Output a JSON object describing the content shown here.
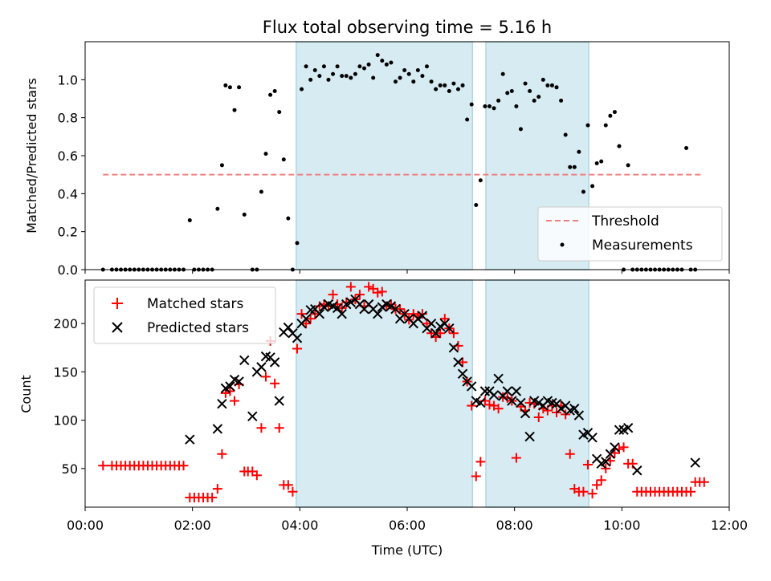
{
  "figure": {
    "title": "Flux total observing time = 5.16 h",
    "xlabel": "Time (UTC)"
  },
  "chart_data": [
    {
      "type": "scatter",
      "ylabel": "Matched/Predicted stars",
      "xlim": [
        "00:00",
        "12:00"
      ],
      "ylim": [
        0,
        1.2
      ],
      "xticks": [
        "00:00",
        "02:00",
        "04:00",
        "06:00",
        "08:00",
        "10:00",
        "12:00"
      ],
      "yticks": [
        "0.0",
        "0.2",
        "0.4",
        "0.6",
        "0.8",
        "1.0"
      ],
      "shaded_intervals": [
        [
          "03:56",
          "07:13"
        ],
        [
          "07:28",
          "09:23"
        ]
      ],
      "threshold": {
        "name": "Threshold",
        "value": 0.5,
        "x_range": [
          "00:20",
          "11:30"
        ],
        "color": "#f08080"
      },
      "legend": {
        "position": "lower-right",
        "entries": [
          "Threshold",
          "Measurements"
        ]
      },
      "series": [
        {
          "name": "Measurements",
          "marker": "dot",
          "color": "#000000",
          "x": [
            "00:20",
            "00:30",
            "00:35",
            "00:40",
            "00:45",
            "00:50",
            "00:55",
            "01:00",
            "01:05",
            "01:10",
            "01:15",
            "01:20",
            "01:25",
            "01:30",
            "01:35",
            "01:40",
            "01:45",
            "01:50",
            "01:57",
            "02:02",
            "02:07",
            "02:12",
            "02:17",
            "02:22",
            "02:28",
            "02:33",
            "02:37",
            "02:42",
            "02:47",
            "02:52",
            "02:58",
            "03:07",
            "03:12",
            "03:17",
            "03:22",
            "03:27",
            "03:32",
            "03:37",
            "03:42",
            "03:47",
            "03:52",
            "03:57",
            "04:02",
            "04:07",
            "04:12",
            "04:17",
            "04:22",
            "04:27",
            "04:32",
            "04:37",
            "04:42",
            "04:47",
            "04:52",
            "04:57",
            "05:02",
            "05:07",
            "05:12",
            "05:17",
            "05:22",
            "05:27",
            "05:32",
            "05:37",
            "05:42",
            "05:47",
            "05:52",
            "05:57",
            "06:02",
            "06:07",
            "06:12",
            "06:17",
            "06:22",
            "06:27",
            "06:32",
            "06:37",
            "06:42",
            "06:47",
            "06:52",
            "06:57",
            "07:02",
            "07:07",
            "07:12",
            "07:17",
            "07:22",
            "07:27",
            "07:32",
            "07:37",
            "07:42",
            "07:47",
            "07:52",
            "07:57",
            "08:02",
            "08:07",
            "08:12",
            "08:17",
            "08:22",
            "08:27",
            "08:32",
            "08:37",
            "08:42",
            "08:47",
            "08:52",
            "08:57",
            "09:02",
            "09:07",
            "09:12",
            "09:17",
            "09:22",
            "09:27",
            "09:32",
            "09:37",
            "09:42",
            "09:47",
            "09:52",
            "09:57",
            "10:02",
            "10:07",
            "10:12",
            "10:17",
            "10:22",
            "10:27",
            "10:32",
            "10:37",
            "10:42",
            "10:47",
            "10:52",
            "10:57",
            "11:02",
            "11:07",
            "11:12",
            "11:17",
            "11:22"
          ],
          "values": [
            0.0,
            0.0,
            0.0,
            0.0,
            0.0,
            0.0,
            0.0,
            0.0,
            0.0,
            0.0,
            0.0,
            0.0,
            0.0,
            0.0,
            0.0,
            0.0,
            0.0,
            0.0,
            0.26,
            0.0,
            0.0,
            0.0,
            0.0,
            0.0,
            0.32,
            0.55,
            0.97,
            0.96,
            0.84,
            0.96,
            0.29,
            0.0,
            0.0,
            0.41,
            0.61,
            0.92,
            0.94,
            0.83,
            0.58,
            0.27,
            0.0,
            0.14,
            0.95,
            1.07,
            1.0,
            1.05,
            1.02,
            1.07,
            1.0,
            1.03,
            1.07,
            1.02,
            1.02,
            1.01,
            1.03,
            1.07,
            1.06,
            1.08,
            1.01,
            1.13,
            1.1,
            1.08,
            1.09,
            0.99,
            1.01,
            1.05,
            1.03,
            0.99,
            1.05,
            1.02,
            1.07,
            0.99,
            0.95,
            0.97,
            0.97,
            0.94,
            0.98,
            0.95,
            0.97,
            0.79,
            0.87,
            0.34,
            0.47,
            0.86,
            0.86,
            0.85,
            0.89,
            1.03,
            0.93,
            0.94,
            0.86,
            0.74,
            0.98,
            0.94,
            0.89,
            0.91,
            1.0,
            0.97,
            0.97,
            0.96,
            0.89,
            0.71,
            0.54,
            0.54,
            0.62,
            0.41,
            0.76,
            0.44,
            0.56,
            0.57,
            0.76,
            0.81,
            0.83,
            0.65,
            0.0,
            0.55,
            0.0,
            0.0,
            0.0,
            0.0,
            0.0,
            0.0,
            0.0,
            0.0,
            0.0,
            0.0,
            0.0,
            0.0,
            0.64,
            0.0,
            0.0
          ]
        }
      ]
    },
    {
      "type": "scatter",
      "ylabel": "Count",
      "xlabel": "Time (UTC)",
      "xlim": [
        "00:00",
        "12:00"
      ],
      "ylim": [
        10,
        245
      ],
      "xticks": [
        "00:00",
        "02:00",
        "04:00",
        "06:00",
        "08:00",
        "10:00",
        "12:00"
      ],
      "yticks": [
        "50",
        "100",
        "150",
        "200"
      ],
      "shaded_intervals": [
        [
          "03:56",
          "07:13"
        ],
        [
          "07:28",
          "09:23"
        ]
      ],
      "legend": {
        "position": "top-left",
        "entries": [
          "Matched stars",
          "Predicted stars"
        ]
      },
      "series": [
        {
          "name": "Matched stars",
          "marker": "plus",
          "color": "#ff0000",
          "x": [
            "00:20",
            "00:30",
            "00:35",
            "00:40",
            "00:45",
            "00:50",
            "00:55",
            "01:00",
            "01:05",
            "01:10",
            "01:15",
            "01:20",
            "01:25",
            "01:30",
            "01:35",
            "01:40",
            "01:45",
            "01:50",
            "01:57",
            "02:02",
            "02:07",
            "02:12",
            "02:17",
            "02:22",
            "02:28",
            "02:33",
            "02:37",
            "02:42",
            "02:47",
            "02:52",
            "02:58",
            "03:02",
            "03:07",
            "03:12",
            "03:17",
            "03:22",
            "03:27",
            "03:32",
            "03:37",
            "03:42",
            "03:47",
            "03:52",
            "03:57",
            "04:02",
            "04:07",
            "04:12",
            "04:17",
            "04:22",
            "04:27",
            "04:32",
            "04:37",
            "04:42",
            "04:47",
            "04:52",
            "04:57",
            "05:02",
            "05:07",
            "05:12",
            "05:17",
            "05:22",
            "05:27",
            "05:32",
            "05:37",
            "05:42",
            "05:47",
            "05:52",
            "05:57",
            "06:02",
            "06:07",
            "06:12",
            "06:17",
            "06:22",
            "06:27",
            "06:32",
            "06:37",
            "06:42",
            "06:47",
            "06:52",
            "06:57",
            "07:02",
            "07:07",
            "07:12",
            "07:17",
            "07:22",
            "07:27",
            "07:32",
            "07:37",
            "07:42",
            "07:47",
            "07:52",
            "07:57",
            "08:02",
            "08:07",
            "08:12",
            "08:17",
            "08:22",
            "08:27",
            "08:32",
            "08:37",
            "08:42",
            "08:47",
            "08:52",
            "08:57",
            "09:02",
            "09:07",
            "09:12",
            "09:17",
            "09:22",
            "09:27",
            "09:32",
            "09:37",
            "09:42",
            "09:47",
            "09:52",
            "09:57",
            "10:02",
            "10:07",
            "10:12",
            "10:17",
            "10:22",
            "10:27",
            "10:32",
            "10:37",
            "10:42",
            "10:47",
            "10:52",
            "10:57",
            "11:02",
            "11:07",
            "11:12",
            "11:17",
            "11:22",
            "11:27",
            "11:32"
          ],
          "values": [
            53,
            53,
            53,
            53,
            53,
            53,
            53,
            53,
            53,
            53,
            53,
            53,
            53,
            53,
            53,
            53,
            53,
            53,
            20,
            20,
            20,
            20,
            20,
            20,
            29,
            65,
            128,
            130,
            120,
            137,
            47,
            47,
            47,
            43,
            92,
            145,
            182,
            138,
            92,
            33,
            33,
            26,
            174,
            210,
            200,
            205,
            210,
            218,
            220,
            218,
            230,
            220,
            216,
            222,
            238,
            225,
            230,
            218,
            238,
            236,
            232,
            233,
            218,
            220,
            215,
            215,
            210,
            204,
            210,
            208,
            210,
            200,
            190,
            186,
            190,
            205,
            195,
            190,
            177,
            160,
            140,
            115,
            42,
            57,
            120,
            116,
            115,
            112,
            124,
            123,
            120,
            61,
            114,
            110,
            118,
            117,
            103,
            112,
            110,
            115,
            108,
            115,
            106,
            65,
            29,
            26,
            26,
            54,
            24,
            33,
            38,
            50,
            58,
            66,
            70,
            72,
            55,
            55,
            26,
            26,
            26,
            26,
            26,
            26,
            26,
            26,
            26,
            26,
            26,
            26,
            26,
            36,
            36,
            36
          ]
        },
        {
          "name": "Predicted stars",
          "marker": "x",
          "color": "#000000",
          "x": [
            "01:57",
            "02:28",
            "02:33",
            "02:37",
            "02:42",
            "02:47",
            "02:52",
            "02:58",
            "03:07",
            "03:12",
            "03:17",
            "03:22",
            "03:27",
            "03:32",
            "03:37",
            "03:42",
            "03:47",
            "03:52",
            "03:57",
            "04:02",
            "04:07",
            "04:12",
            "04:17",
            "04:22",
            "04:27",
            "04:32",
            "04:37",
            "04:42",
            "04:47",
            "04:52",
            "04:57",
            "05:02",
            "05:07",
            "05:12",
            "05:17",
            "05:22",
            "05:27",
            "05:32",
            "05:37",
            "05:42",
            "05:47",
            "05:52",
            "05:57",
            "06:02",
            "06:07",
            "06:12",
            "06:17",
            "06:22",
            "06:27",
            "06:32",
            "06:37",
            "06:42",
            "06:47",
            "06:52",
            "06:57",
            "07:02",
            "07:07",
            "07:12",
            "07:17",
            "07:22",
            "07:27",
            "07:32",
            "07:37",
            "07:42",
            "07:47",
            "07:52",
            "07:57",
            "08:02",
            "08:07",
            "08:12",
            "08:17",
            "08:22",
            "08:27",
            "08:32",
            "08:37",
            "08:42",
            "08:47",
            "08:52",
            "08:57",
            "09:02",
            "09:07",
            "09:12",
            "09:17",
            "09:22",
            "09:27",
            "09:32",
            "09:37",
            "09:42",
            "09:47",
            "09:52",
            "09:57",
            "10:02",
            "10:07",
            "10:17",
            "11:22"
          ],
          "values": [
            80,
            91,
            117,
            133,
            135,
            142,
            140,
            162,
            104,
            150,
            155,
            166,
            165,
            160,
            120,
            191,
            196,
            190,
            185,
            200,
            205,
            214,
            215,
            210,
            217,
            220,
            218,
            216,
            210,
            220,
            222,
            225,
            220,
            215,
            220,
            215,
            210,
            217,
            220,
            218,
            215,
            205,
            210,
            205,
            200,
            205,
            208,
            195,
            200,
            190,
            197,
            200,
            195,
            175,
            160,
            148,
            140,
            135,
            120,
            118,
            130,
            130,
            126,
            143,
            125,
            130,
            120,
            130,
            118,
            107,
            83,
            120,
            118,
            115,
            120,
            118,
            117,
            112,
            115,
            110,
            112,
            105,
            85,
            87,
            82,
            60,
            55,
            57,
            65,
            72,
            90,
            90,
            92,
            48,
            56
          ]
        }
      ]
    }
  ]
}
